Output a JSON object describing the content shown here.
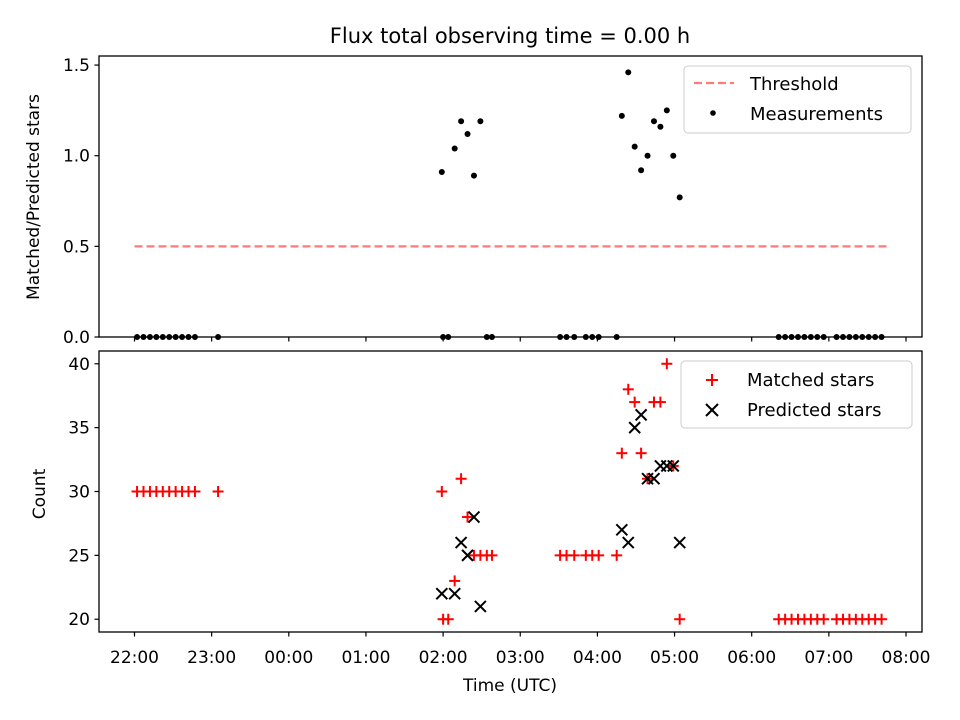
{
  "title": "Flux total observing time = 0.00 h",
  "chart_data": [
    {
      "type": "scatter",
      "ylabel": "Matched/Predicted stars",
      "ylim": [
        0,
        1.55
      ],
      "yticks": [
        0.0,
        0.5,
        1.0,
        1.5
      ],
      "ytick_labels": [
        "0.0",
        "0.5",
        "1.0",
        "1.5"
      ],
      "legend_position": "top-right",
      "threshold": {
        "name": "Threshold",
        "value": 0.5,
        "x_start": "22:00",
        "x_end": "07:45",
        "color": "#ff7a7a"
      },
      "series": [
        {
          "name": "Measurements",
          "color": "#000000",
          "points": [
            [
              "22:02",
              0
            ],
            [
              "22:07",
              0
            ],
            [
              "22:12",
              0
            ],
            [
              "22:17",
              0
            ],
            [
              "22:22",
              0
            ],
            [
              "22:27",
              0
            ],
            [
              "22:32",
              0
            ],
            [
              "22:37",
              0
            ],
            [
              "22:42",
              0
            ],
            [
              "22:47",
              0
            ],
            [
              "23:05",
              0
            ],
            [
              "01:59",
              0.91
            ],
            [
              "02:00",
              0
            ],
            [
              "02:04",
              0
            ],
            [
              "02:09",
              1.04
            ],
            [
              "02:14",
              1.19
            ],
            [
              "02:19",
              1.12
            ],
            [
              "02:24",
              0.89
            ],
            [
              "02:29",
              1.19
            ],
            [
              "02:34",
              0
            ],
            [
              "02:38",
              0
            ],
            [
              "03:31",
              0
            ],
            [
              "03:36",
              0
            ],
            [
              "03:42",
              0
            ],
            [
              "03:51",
              0
            ],
            [
              "03:56",
              0
            ],
            [
              "04:01",
              0
            ],
            [
              "04:15",
              0
            ],
            [
              "04:19",
              1.22
            ],
            [
              "04:24",
              1.46
            ],
            [
              "04:29",
              1.05
            ],
            [
              "04:34",
              0.92
            ],
            [
              "04:39",
              1.0
            ],
            [
              "04:44",
              1.19
            ],
            [
              "04:49",
              1.16
            ],
            [
              "04:54",
              1.25
            ],
            [
              "04:59",
              1.0
            ],
            [
              "05:04",
              0.77
            ],
            [
              "06:21",
              0
            ],
            [
              "06:26",
              0
            ],
            [
              "06:31",
              0
            ],
            [
              "06:36",
              0
            ],
            [
              "06:41",
              0
            ],
            [
              "06:46",
              0
            ],
            [
              "06:51",
              0
            ],
            [
              "06:56",
              0
            ],
            [
              "07:06",
              0
            ],
            [
              "07:11",
              0
            ],
            [
              "07:16",
              0
            ],
            [
              "07:21",
              0
            ],
            [
              "07:26",
              0
            ],
            [
              "07:31",
              0
            ],
            [
              "07:36",
              0
            ],
            [
              "07:41",
              0
            ]
          ]
        }
      ]
    },
    {
      "type": "scatter",
      "ylabel": "Count",
      "xlabel": "Time (UTC)",
      "ylim": [
        19.0,
        41.0
      ],
      "yticks": [
        20,
        25,
        30,
        35,
        40
      ],
      "ytick_labels": [
        "20",
        "25",
        "30",
        "35",
        "40"
      ],
      "xticks": [
        "22:00",
        "23:00",
        "00:00",
        "01:00",
        "02:00",
        "03:00",
        "04:00",
        "05:00",
        "06:00",
        "07:00",
        "08:00"
      ],
      "legend_position": "top-right",
      "series": [
        {
          "name": "Matched stars",
          "marker": "plus",
          "color": "#ff0000",
          "points": [
            [
              "22:02",
              30
            ],
            [
              "22:07",
              30
            ],
            [
              "22:12",
              30
            ],
            [
              "22:17",
              30
            ],
            [
              "22:22",
              30
            ],
            [
              "22:27",
              30
            ],
            [
              "22:32",
              30
            ],
            [
              "22:37",
              30
            ],
            [
              "22:42",
              30
            ],
            [
              "22:47",
              30
            ],
            [
              "23:05",
              30
            ],
            [
              "01:59",
              30
            ],
            [
              "02:00",
              20
            ],
            [
              "02:04",
              20
            ],
            [
              "02:09",
              23
            ],
            [
              "02:14",
              31
            ],
            [
              "02:19",
              28
            ],
            [
              "02:24",
              25
            ],
            [
              "02:29",
              25
            ],
            [
              "02:34",
              25
            ],
            [
              "02:38",
              25
            ],
            [
              "03:31",
              25
            ],
            [
              "03:36",
              25
            ],
            [
              "03:42",
              25
            ],
            [
              "03:51",
              25
            ],
            [
              "03:56",
              25
            ],
            [
              "04:01",
              25
            ],
            [
              "04:15",
              25
            ],
            [
              "04:19",
              33
            ],
            [
              "04:24",
              38
            ],
            [
              "04:29",
              37
            ],
            [
              "04:34",
              33
            ],
            [
              "04:39",
              31
            ],
            [
              "04:44",
              37
            ],
            [
              "04:49",
              37
            ],
            [
              "04:54",
              40
            ],
            [
              "04:59",
              32
            ],
            [
              "05:04",
              20
            ],
            [
              "06:21",
              20
            ],
            [
              "06:26",
              20
            ],
            [
              "06:31",
              20
            ],
            [
              "06:36",
              20
            ],
            [
              "06:41",
              20
            ],
            [
              "06:46",
              20
            ],
            [
              "06:51",
              20
            ],
            [
              "06:56",
              20
            ],
            [
              "07:06",
              20
            ],
            [
              "07:11",
              20
            ],
            [
              "07:16",
              20
            ],
            [
              "07:21",
              20
            ],
            [
              "07:26",
              20
            ],
            [
              "07:31",
              20
            ],
            [
              "07:36",
              20
            ],
            [
              "07:41",
              20
            ]
          ]
        },
        {
          "name": "Predicted stars",
          "marker": "x",
          "color": "#000000",
          "points": [
            [
              "01:59",
              22
            ],
            [
              "02:09",
              22
            ],
            [
              "02:14",
              26
            ],
            [
              "02:19",
              25
            ],
            [
              "02:24",
              28
            ],
            [
              "02:29",
              21
            ],
            [
              "04:19",
              27
            ],
            [
              "04:24",
              26
            ],
            [
              "04:29",
              35
            ],
            [
              "04:34",
              36
            ],
            [
              "04:39",
              31
            ],
            [
              "04:44",
              31
            ],
            [
              "04:49",
              32
            ],
            [
              "04:54",
              32
            ],
            [
              "04:59",
              32
            ],
            [
              "05:04",
              26
            ]
          ]
        }
      ]
    }
  ]
}
